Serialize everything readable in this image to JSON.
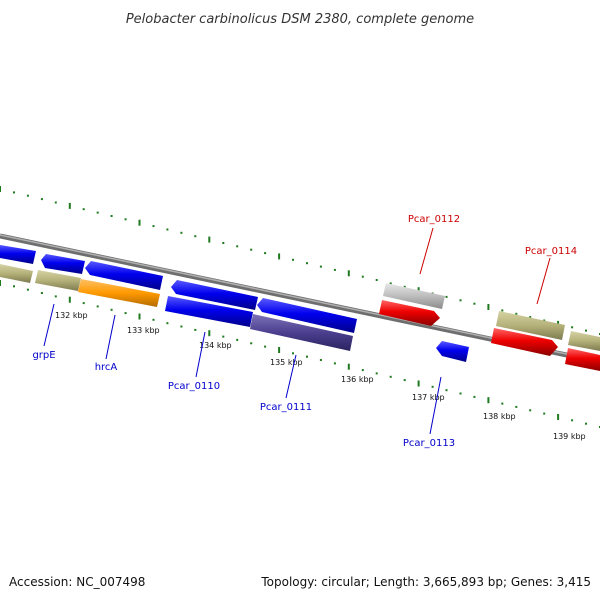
{
  "title": "Pelobacter carbinolicus DSM 2380, complete genome",
  "footer": {
    "accession": "Accession: NC_007498",
    "summary": "Topology: circular; Length: 3,665,893 bp; Genes: 3,415"
  },
  "ticks": [
    "132 kbp",
    "133 kbp",
    "134 kbp",
    "135 kbp",
    "136 kbp",
    "137 kbp",
    "138 kbp",
    "139 kbp"
  ],
  "genes": [
    {
      "label": "grpE",
      "color": "#0000cc"
    },
    {
      "label": "hrcA",
      "color": "#0000cc"
    },
    {
      "label": "Pcar_0110",
      "color": "#0000cc"
    },
    {
      "label": "Pcar_0111",
      "color": "#0000cc"
    },
    {
      "label": "Pcar_0112",
      "color": "#cc0000"
    },
    {
      "label": "Pcar_0113",
      "color": "#0000cc"
    },
    {
      "label": "Pcar_0114",
      "color": "#cc0000"
    }
  ],
  "colors": {
    "forward_cds": "#0000ee",
    "reverse_cds": "#ee0000",
    "tan_feature": "#b5b17a",
    "orange_feature": "#ff9900",
    "dark_feature": "#4b3f8f",
    "grey_feature": "#bdbdbd",
    "backbone": "#808080",
    "tick_marks": "#1f7a1f"
  }
}
